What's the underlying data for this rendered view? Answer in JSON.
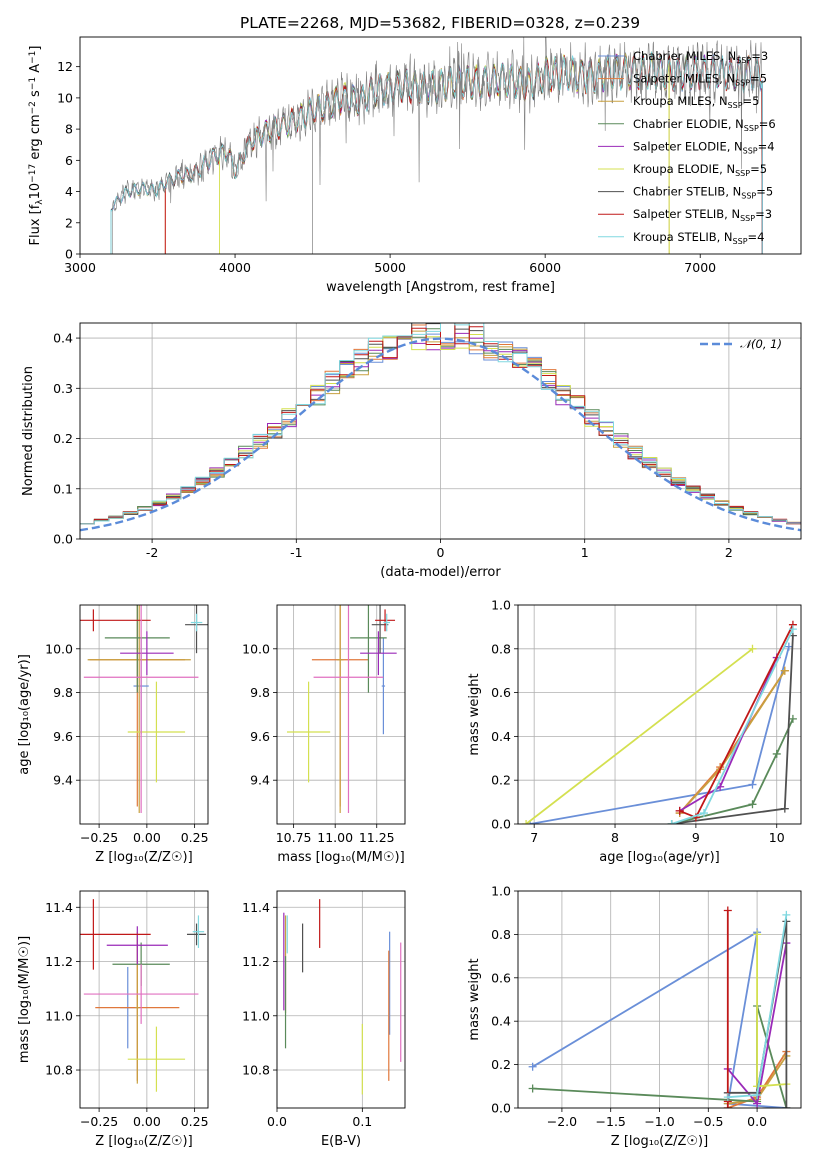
{
  "figure": {
    "title": "PLATE=2268, MJD=53682, FIBERID=0328, z=0.239"
  },
  "series": [
    {
      "name": "Chabrier MILES, N$_{SSP}$=3",
      "label_main": "Chabrier MILES, N",
      "label_sub": "SSP",
      "label_tail": "=3",
      "color": "#6a8fd8"
    },
    {
      "name": "Salpeter MILES, N$_{SSP}$=5",
      "label_main": "Salpeter MILES, N",
      "label_sub": "SSP",
      "label_tail": "=5",
      "color": "#e0783c"
    },
    {
      "name": "Kroupa MILES, N$_{SSP}$=5",
      "label_main": "Kroupa MILES, N",
      "label_sub": "SSP",
      "label_tail": "=5",
      "color": "#c8a040"
    },
    {
      "name": "Chabrier ELODIE, N$_{SSP}$=6",
      "label_main": "Chabrier ELODIE, N",
      "label_sub": "SSP",
      "label_tail": "=6",
      "color": "#5a8a5a"
    },
    {
      "name": "Salpeter ELODIE, N$_{SSP}$=4",
      "label_main": "Salpeter ELODIE, N",
      "label_sub": "SSP",
      "label_tail": "=4",
      "color": "#9a2ab8"
    },
    {
      "name": "Kroupa ELODIE, N$_{SSP}$=5",
      "label_main": "Kroupa ELODIE, N",
      "label_sub": "SSP",
      "label_tail": "=5",
      "color": "#d4e050"
    },
    {
      "name": "Chabrier STELIB, N$_{SSP}$=5",
      "label_main": "Chabrier STELIB, N",
      "label_sub": "SSP",
      "label_tail": "=5",
      "color": "#505050"
    },
    {
      "name": "Salpeter STELIB, N$_{SSP}$=3",
      "label_main": "Salpeter STELIB, N",
      "label_sub": "SSP",
      "label_tail": "=3",
      "color": "#c01818"
    },
    {
      "name": "Kroupa STELIB, N$_{SSP}$=4",
      "label_main": "Kroupa STELIB, N",
      "label_sub": "SSP",
      "label_tail": "=4",
      "color": "#80d8e0"
    }
  ],
  "extra_colors": {
    "pink": "#e070c0",
    "data": "#808080"
  },
  "chart_data": [
    {
      "id": "spectrum",
      "type": "line",
      "xlabel": "wavelength [Angstrom, rest frame]",
      "ylabel_main": "Flux [f",
      "ylabel_sub": "λ",
      "ylabel_rest": "10",
      "ylabel_sup1": "−17",
      "ylabel_mid": " erg cm",
      "ylabel_sup2": "−2",
      "ylabel_mid2": " s",
      "ylabel_sup3": "−1",
      "ylabel_mid3": " A",
      "ylabel_sup4": "−1",
      "ylabel_end": "]",
      "xlim": [
        3000,
        7650
      ],
      "ylim": [
        0,
        13.9
      ],
      "xticks": [
        3000,
        4000,
        5000,
        6000,
        7000
      ],
      "yticks": [
        0,
        2,
        4,
        6,
        8,
        10,
        12
      ],
      "continuum_x": [
        3200,
        3300,
        3400,
        3500,
        3550,
        3650,
        3750,
        3850,
        3950,
        4000,
        4100,
        4200,
        4300,
        4400,
        4500,
        4600,
        4700,
        4800,
        4900,
        5000,
        5100,
        5200,
        5300,
        5400,
        5500,
        5600,
        5700,
        5800,
        5900,
        6000,
        6100,
        6200,
        6300,
        6400,
        6500,
        6600,
        6700,
        6800,
        6900,
        7000,
        7100,
        7200,
        7300,
        7400
      ],
      "continuum_y": [
        3.0,
        4.0,
        4.2,
        4.1,
        4.6,
        5.0,
        5.2,
        6.2,
        6.6,
        5.3,
        7.2,
        7.8,
        8.2,
        8.6,
        9.2,
        9.5,
        10.0,
        9.8,
        10.5,
        10.6,
        10.8,
        10.6,
        10.7,
        11.0,
        11.0,
        11.0,
        11.2,
        11.1,
        10.8,
        11.5,
        11.6,
        11.5,
        11.4,
        11.6,
        11.7,
        11.6,
        11.8,
        11.5,
        11.6,
        11.6,
        11.7,
        11.5,
        11.6,
        11.6
      ],
      "model_start_x": [
        3200,
        3550,
        3200,
        3200,
        3200,
        3900,
        3200,
        3550,
        3200
      ],
      "model_end_x": [
        7400,
        7400,
        6800,
        7400,
        7400,
        6800,
        7400,
        7400,
        7400
      ]
    },
    {
      "id": "residual_histogram",
      "type": "bar",
      "xlabel": "(data-model)/error",
      "ylabel": "Normed distribution",
      "xlim": [
        -2.5,
        2.5
      ],
      "ylim": [
        0,
        0.43
      ],
      "xticks": [
        -2,
        -1,
        0,
        1,
        2
      ],
      "yticks": [
        0.0,
        0.1,
        0.2,
        0.3,
        0.4
      ],
      "bin_width": 0.1,
      "gaussian": {
        "label": "𝒩(0, 1)",
        "mean": 0,
        "sigma": 1,
        "color": "#5b8bd9"
      }
    },
    {
      "id": "age_vs_Z",
      "type": "scatter",
      "xlabel": "Z [log₁₀(Z/Z☉)]",
      "ylabel": "age  [log₁₀(age/yr)]",
      "xlim": [
        -0.35,
        0.32
      ],
      "ylim": [
        9.2,
        10.2
      ],
      "xticks": [
        -0.25,
        0.0,
        0.25
      ],
      "xticklabels": [
        "−0.25",
        "0.00",
        "0.25"
      ],
      "yticks": [
        9.4,
        9.6,
        9.8,
        10.0
      ],
      "points": [
        {
          "x": -0.03,
          "y": 9.83,
          "xerr": 0.04,
          "yerr": 0.22,
          "series": 0
        },
        {
          "x": -0.05,
          "y": 9.95,
          "xerr": 0.25,
          "yerr": 0.67,
          "series": 1
        },
        {
          "x": -0.04,
          "y": 9.95,
          "xerr": 0.27,
          "yerr": 0.7,
          "series": 2
        },
        {
          "x": -0.05,
          "y": 10.05,
          "xerr": 0.17,
          "yerr": 0.25,
          "series": 3
        },
        {
          "x": 0.0,
          "y": 9.98,
          "xerr": 0.14,
          "yerr": 0.1,
          "series": 4
        },
        {
          "x": 0.05,
          "y": 9.62,
          "xerr": 0.15,
          "yerr": 0.23,
          "series": 5
        },
        {
          "x": 0.26,
          "y": 10.11,
          "xerr": 0.06,
          "yerr": 0.13,
          "series": 6
        },
        {
          "x": -0.28,
          "y": 10.13,
          "xerr": 0.3,
          "yerr": 0.05,
          "series": 7
        },
        {
          "x": 0.26,
          "y": 10.12,
          "xerr": 0.03,
          "yerr": 0.04,
          "series": 8
        },
        {
          "x": -0.03,
          "y": 9.87,
          "xerr": 0.3,
          "yerr": 0.62,
          "series": 9
        }
      ]
    },
    {
      "id": "age_vs_mass",
      "type": "scatter",
      "xlabel": "mass [log₁₀(M/M☉)]",
      "ylabel": "",
      "xlim": [
        10.65,
        11.42
      ],
      "ylim": [
        9.2,
        10.2
      ],
      "xticks": [
        10.75,
        11.0,
        11.25
      ],
      "xticklabels": [
        "10.75",
        "11.00",
        "11.25"
      ],
      "yticks": [
        9.4,
        9.6,
        9.8,
        10.0
      ],
      "points": [
        {
          "x": 11.29,
          "y": 9.83,
          "xerr": 0.01,
          "yerr": 0.22,
          "series": 0
        },
        {
          "x": 11.03,
          "y": 9.95,
          "xerr": 0.17,
          "yerr": 0.67,
          "series": 1
        },
        {
          "x": 11.03,
          "y": 9.95,
          "xerr": 0.02,
          "yerr": 0.7,
          "series": 2
        },
        {
          "x": 11.2,
          "y": 10.05,
          "xerr": 0.11,
          "yerr": 0.25,
          "series": 3
        },
        {
          "x": 11.26,
          "y": 9.98,
          "xerr": 0.11,
          "yerr": 0.1,
          "series": 4
        },
        {
          "x": 10.84,
          "y": 9.62,
          "xerr": 0.13,
          "yerr": 0.23,
          "series": 5
        },
        {
          "x": 11.27,
          "y": 10.11,
          "xerr": 0.05,
          "yerr": 0.13,
          "series": 6
        },
        {
          "x": 11.3,
          "y": 10.13,
          "xerr": 0.06,
          "yerr": 0.05,
          "series": 7
        },
        {
          "x": 11.31,
          "y": 10.12,
          "xerr": 0.02,
          "yerr": 0.04,
          "series": 8
        },
        {
          "x": 11.08,
          "y": 9.87,
          "xerr": 0.21,
          "yerr": 0.62,
          "series": 9
        }
      ]
    },
    {
      "id": "mass_weight_vs_age",
      "type": "line",
      "xlabel": "age  [log₁₀(age/yr)]",
      "ylabel": "mass weight",
      "xlim": [
        6.8,
        10.3
      ],
      "ylim": [
        0,
        1.0
      ],
      "xticks": [
        7,
        8,
        9,
        10
      ],
      "yticks": [
        0.0,
        0.2,
        0.4,
        0.6,
        0.8,
        1.0
      ],
      "curves": [
        {
          "series": 0,
          "x": [
            6.95,
            9.7,
            10.15
          ],
          "y": [
            0.0,
            0.18,
            0.81
          ]
        },
        {
          "series": 1,
          "x": [
            8.8,
            9.3,
            10.1
          ],
          "y": [
            0.05,
            0.26,
            0.7
          ]
        },
        {
          "series": 2,
          "x": [
            8.8,
            9.3,
            10.1
          ],
          "y": [
            0.05,
            0.25,
            0.7
          ]
        },
        {
          "series": 3,
          "x": [
            8.7,
            9.7,
            10.0,
            10.2
          ],
          "y": [
            0.0,
            0.09,
            0.32,
            0.48
          ]
        },
        {
          "series": 4,
          "x": [
            8.8,
            9.3,
            10.0
          ],
          "y": [
            0.06,
            0.17,
            0.76
          ]
        },
        {
          "series": 5,
          "x": [
            6.9,
            9.7
          ],
          "y": [
            0.0,
            0.8
          ]
        },
        {
          "series": 6,
          "x": [
            8.7,
            10.1,
            10.2
          ],
          "y": [
            0.0,
            0.07,
            0.86
          ]
        },
        {
          "series": 7,
          "x": [
            8.8,
            9.0,
            10.2
          ],
          "y": [
            0.06,
            0.03,
            0.91
          ]
        },
        {
          "series": 8,
          "x": [
            8.7,
            9.1,
            10.2
          ],
          "y": [
            0.0,
            0.05,
            0.89
          ]
        }
      ]
    },
    {
      "id": "mass_vs_Z",
      "type": "scatter",
      "xlabel": "Z [log₁₀(Z/Z☉)]",
      "ylabel": "mass [log₁₀(M/M☉)]",
      "xlim": [
        -0.35,
        0.32
      ],
      "ylim": [
        10.66,
        11.46
      ],
      "xticks": [
        -0.25,
        0.0,
        0.25
      ],
      "xticklabels": [
        "−0.25",
        "0.00",
        "0.25"
      ],
      "yticks": [
        10.8,
        11.0,
        11.2,
        11.4
      ],
      "points": [
        {
          "x": -0.1,
          "y": 11.03,
          "xerr": 0.04,
          "yerr": 0.15,
          "series": 0
        },
        {
          "x": -0.05,
          "y": 11.03,
          "xerr": 0.22,
          "yerr": 0.27,
          "series": 1
        },
        {
          "x": -0.05,
          "y": 11.03,
          "xerr": 0.01,
          "yerr": 0.28,
          "series": 2
        },
        {
          "x": -0.03,
          "y": 11.19,
          "xerr": 0.15,
          "yerr": 0.08,
          "series": 3
        },
        {
          "x": -0.05,
          "y": 11.26,
          "xerr": 0.16,
          "yerr": 0.07,
          "series": 4
        },
        {
          "x": 0.05,
          "y": 10.84,
          "xerr": 0.15,
          "yerr": 0.12,
          "series": 5
        },
        {
          "x": 0.26,
          "y": 11.3,
          "xerr": 0.05,
          "yerr": 0.04,
          "series": 6
        },
        {
          "x": -0.28,
          "y": 11.3,
          "xerr": 0.3,
          "yerr": 0.13,
          "series": 7
        },
        {
          "x": 0.27,
          "y": 11.31,
          "xerr": 0.03,
          "yerr": 0.06,
          "series": 8
        },
        {
          "x": -0.03,
          "y": 11.08,
          "xerr": 0.3,
          "yerr": 0.11,
          "series": 9
        }
      ]
    },
    {
      "id": "mass_vs_ebv",
      "type": "scatter",
      "xlabel": "E(B-V)",
      "ylabel": "",
      "xlim": [
        0.0,
        0.15
      ],
      "ylim": [
        10.66,
        11.46
      ],
      "xticks": [
        0.0,
        0.1
      ],
      "xticklabels": [
        "0.0",
        "0.1"
      ],
      "yticks": [
        10.8,
        11.0,
        11.2,
        11.4
      ],
      "points": [
        {
          "x": 0.132,
          "y": 11.12,
          "yerr": 0.19,
          "series": 0
        },
        {
          "x": 0.131,
          "y": 11.0,
          "yerr": 0.24,
          "series": 1
        },
        {
          "x": 0.01,
          "y": 11.19,
          "yerr": 0.18,
          "series": 2
        },
        {
          "x": 0.01,
          "y": 11.05,
          "yerr": 0.17,
          "series": 3
        },
        {
          "x": 0.008,
          "y": 11.2,
          "yerr": 0.18,
          "series": 4
        },
        {
          "x": 0.1,
          "y": 10.84,
          "yerr": 0.13,
          "series": 5
        },
        {
          "x": 0.03,
          "y": 11.25,
          "yerr": 0.09,
          "series": 6
        },
        {
          "x": 0.05,
          "y": 11.34,
          "yerr": 0.09,
          "series": 7
        },
        {
          "x": 0.012,
          "y": 11.3,
          "yerr": 0.07,
          "series": 8
        },
        {
          "x": 0.145,
          "y": 11.05,
          "yerr": 0.22,
          "series": 9
        }
      ]
    },
    {
      "id": "mass_weight_vs_Z",
      "type": "line",
      "xlabel": "Z [log₁₀(Z/Z☉)]",
      "ylabel": "mass weight",
      "xlim": [
        -2.45,
        0.45
      ],
      "ylim": [
        0,
        1.0
      ],
      "xticks": [
        -2.0,
        -1.5,
        -1.0,
        -0.5,
        0.0
      ],
      "xticklabels": [
        "−2.0",
        "−1.5",
        "−1.0",
        "−0.5",
        "0.0"
      ],
      "yticks": [
        0.0,
        0.2,
        0.4,
        0.6,
        0.8,
        1.0
      ],
      "curves": [
        {
          "series": 0,
          "x": [
            -2.3,
            0.0,
            -0.3,
            0.3
          ],
          "y": [
            0.19,
            0.81,
            0.02,
            0.0
          ]
        },
        {
          "series": 1,
          "x": [
            -0.3,
            0.0,
            0.3
          ],
          "y": [
            0.0,
            0.05,
            0.26
          ]
        },
        {
          "series": 2,
          "x": [
            -0.3,
            0.0,
            0.3
          ],
          "y": [
            0.02,
            0.04,
            0.24
          ]
        },
        {
          "series": 3,
          "x": [
            -2.3,
            0.0,
            0.0,
            0.3
          ],
          "y": [
            0.09,
            0.03,
            0.47,
            0.0
          ]
        },
        {
          "series": 4,
          "x": [
            -0.3,
            0.0,
            0.3
          ],
          "y": [
            0.18,
            0.02,
            0.76
          ]
        },
        {
          "series": 5,
          "x": [
            0.0,
            0.0,
            0.3
          ],
          "y": [
            0.8,
            0.1,
            0.11
          ]
        },
        {
          "series": 6,
          "x": [
            -0.3,
            0.0,
            0.3,
            0.3
          ],
          "y": [
            0.07,
            0.07,
            0.86,
            0.0
          ]
        },
        {
          "series": 7,
          "x": [
            -0.3,
            -0.3,
            -0.3
          ],
          "y": [
            0.91,
            0.03,
            0.0
          ]
        },
        {
          "series": 8,
          "x": [
            -0.3,
            0.0,
            0.3
          ],
          "y": [
            0.05,
            0.06,
            0.89
          ]
        }
      ]
    }
  ]
}
